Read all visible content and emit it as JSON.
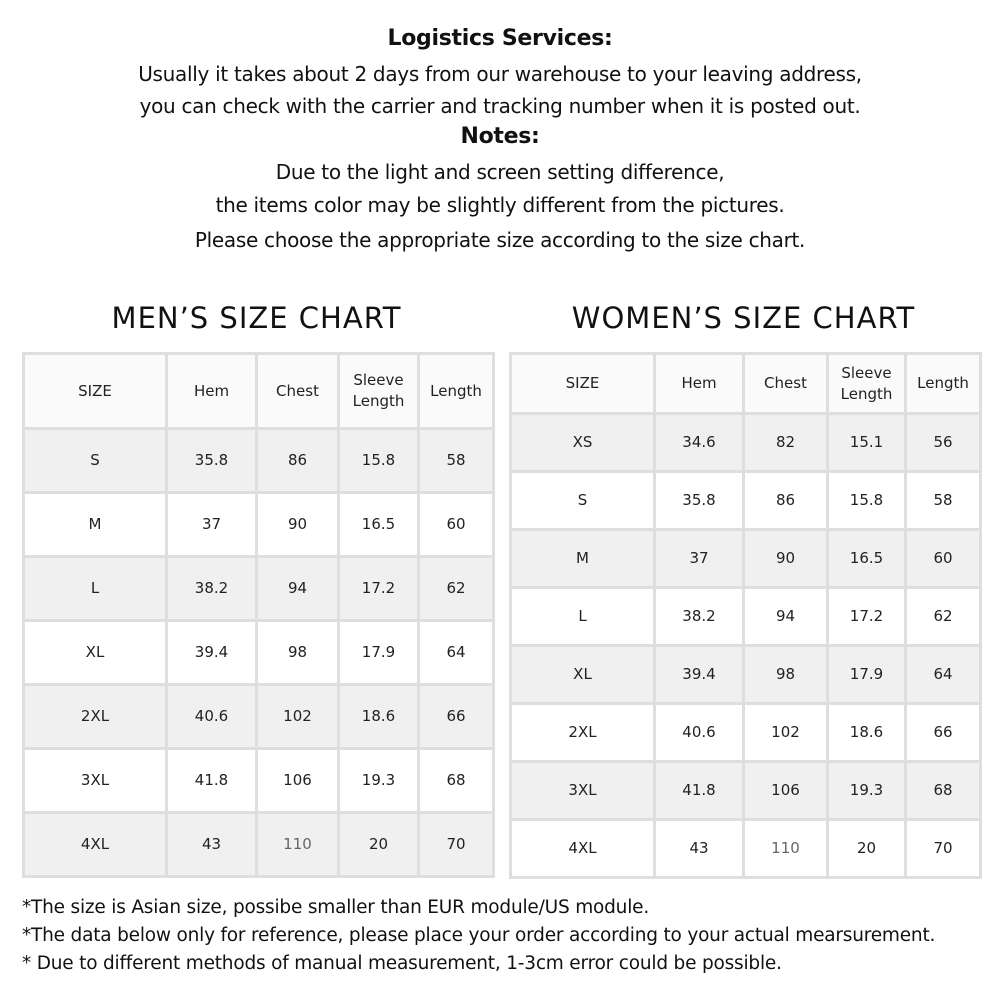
{
  "intro": {
    "logistics_title": "Logistics Services:",
    "logistics_lines": [
      "Usually it takes about 2 days from our warehouse to your leaving address,",
      "you can check with the carrier and tracking number when it is posted out."
    ],
    "notes_title": "Notes:",
    "notes_lines": [
      "Due to the light and screen setting difference,",
      "the items color may be slightly different from the pictures.",
      "Please choose the appropriate size according to the size chart."
    ]
  },
  "men": {
    "title": "MEN’S  SIZE CHART",
    "headers": [
      "SIZE",
      "Hem",
      "Chest",
      "Sleeve Length",
      "Length"
    ],
    "rows": [
      [
        "S",
        "35.8",
        "86",
        "15.8",
        "58"
      ],
      [
        "M",
        "37",
        "90",
        "16.5",
        "60"
      ],
      [
        "L",
        "38.2",
        "94",
        "17.2",
        "62"
      ],
      [
        "XL",
        "39.4",
        "98",
        "17.9",
        "64"
      ],
      [
        "2XL",
        "40.6",
        "102",
        "18.6",
        "66"
      ],
      [
        "3XL",
        "41.8",
        "106",
        "19.3",
        "68"
      ],
      [
        "4XL",
        "43",
        "110",
        "20",
        "70"
      ]
    ]
  },
  "women": {
    "title": "WOMEN’S  SIZE CHART",
    "headers": [
      "SIZE",
      "Hem",
      "Chest",
      "Sleeve Length",
      "Length"
    ],
    "rows": [
      [
        "XS",
        "34.6",
        "82",
        "15.1",
        "56"
      ],
      [
        "S",
        "35.8",
        "86",
        "15.8",
        "58"
      ],
      [
        "M",
        "37",
        "90",
        "16.5",
        "60"
      ],
      [
        "L",
        "38.2",
        "94",
        "17.2",
        "62"
      ],
      [
        "XL",
        "39.4",
        "98",
        "17.9",
        "64"
      ],
      [
        "2XL",
        "40.6",
        "102",
        "18.6",
        "66"
      ],
      [
        "3XL",
        "41.8",
        "106",
        "19.3",
        "68"
      ],
      [
        "4XL",
        "43",
        "110",
        "20",
        "70"
      ]
    ]
  },
  "footnotes": [
    "*The size is Asian size, possibe smaller than EUR module/US module.",
    "*The data below only for reference, please place your order according to your actual mearsurement.",
    "* Due to different methods of manual measurement, 1-3cm error could be possible."
  ]
}
